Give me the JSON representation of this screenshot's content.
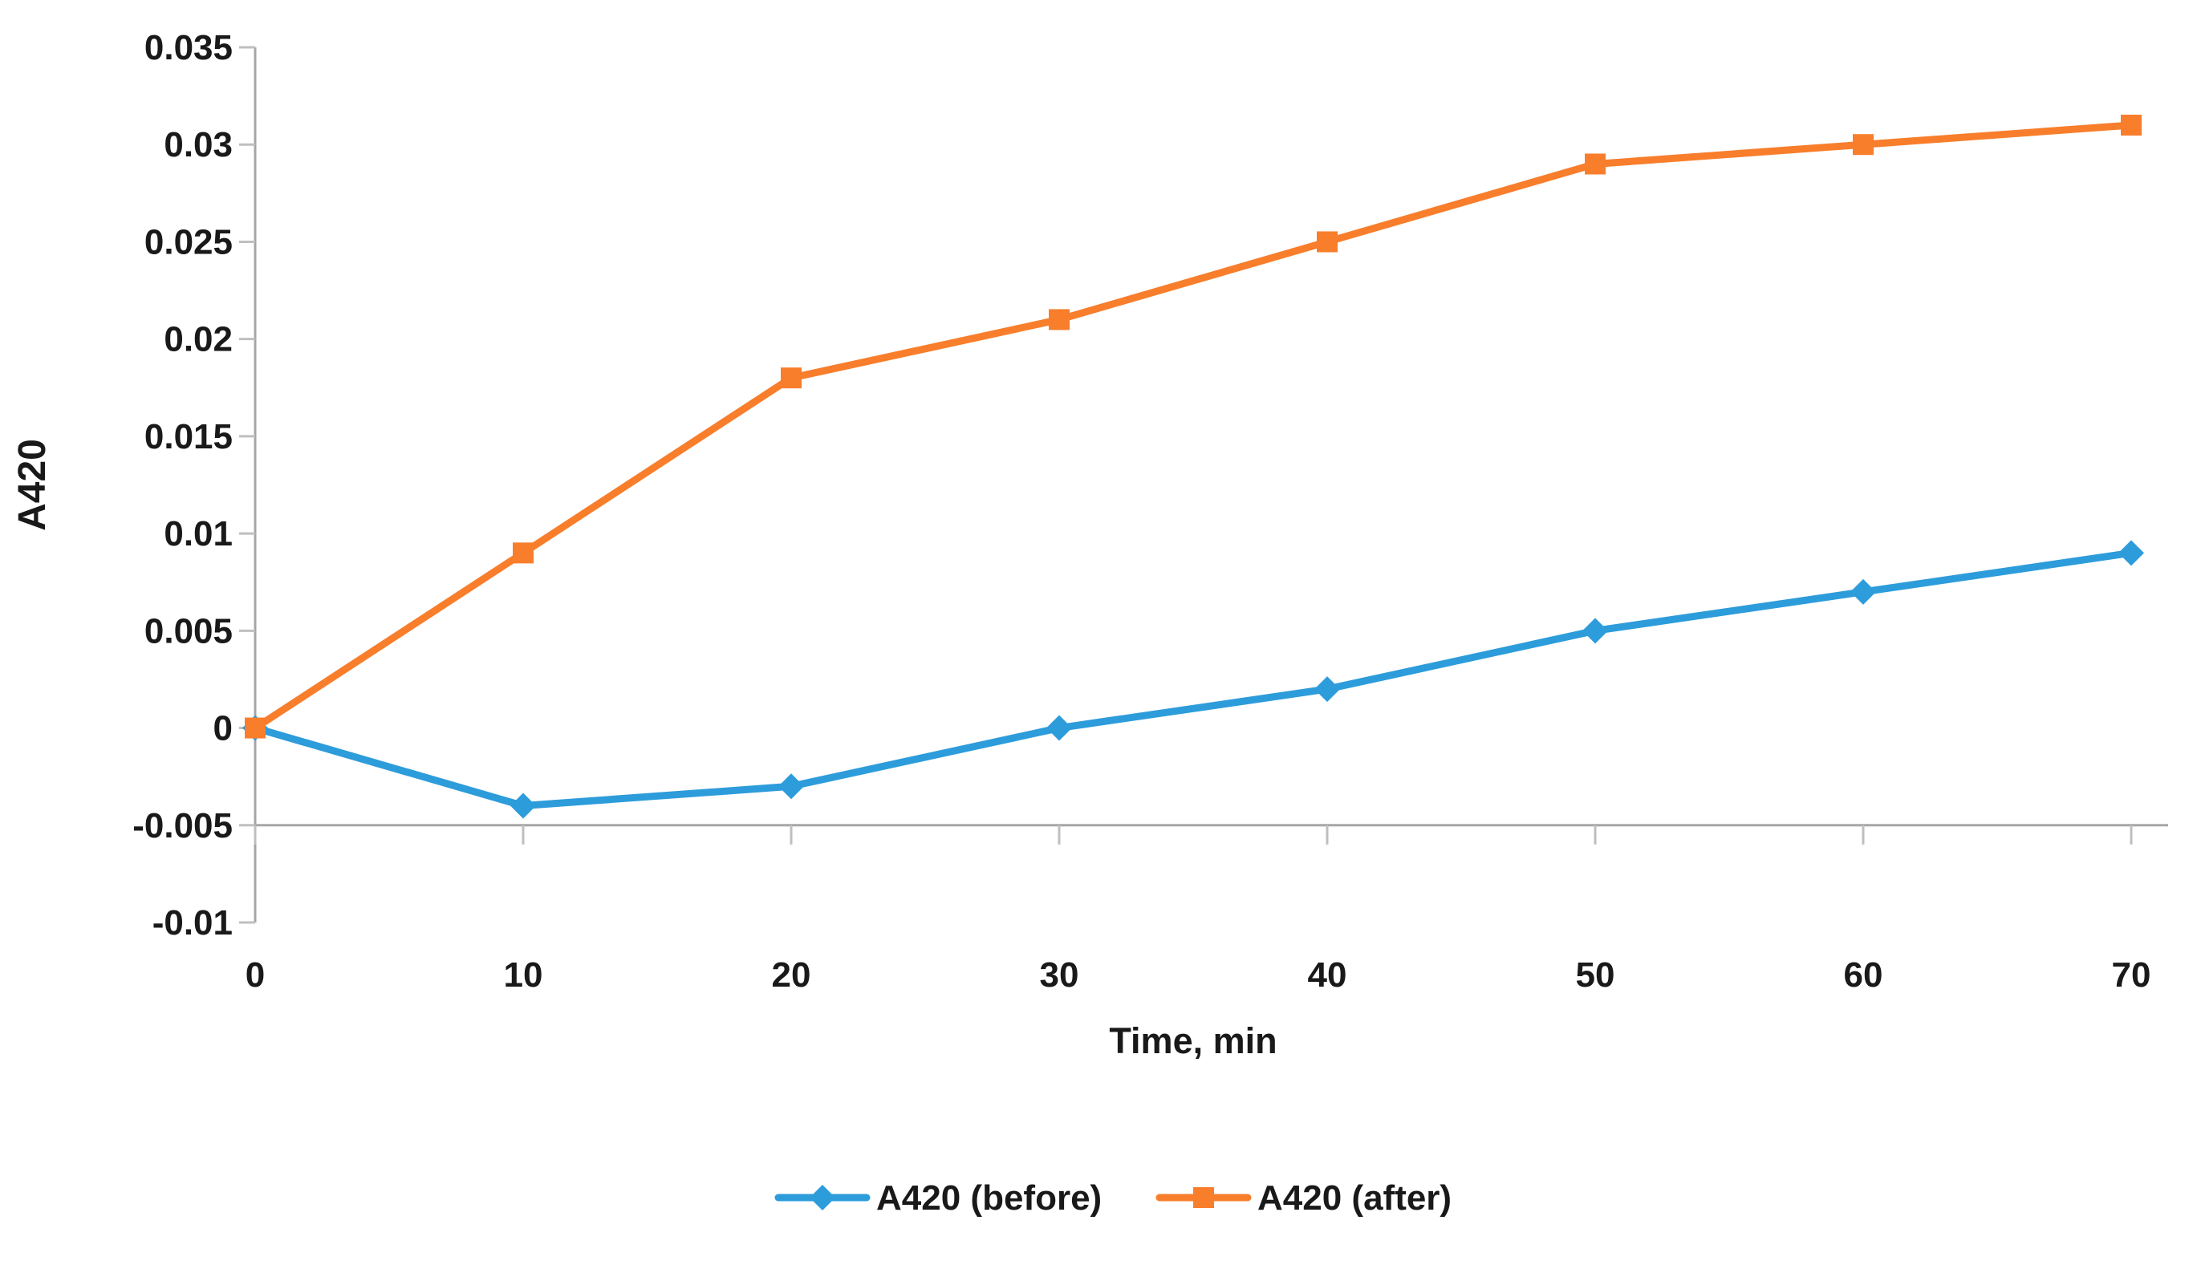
{
  "chart_data": {
    "type": "line",
    "x": [
      0,
      10,
      20,
      30,
      40,
      50,
      60,
      70
    ],
    "x_tick_labels": [
      "0",
      "10",
      "20",
      "30",
      "40",
      "50",
      "60",
      "70"
    ],
    "y_tick_labels": [
      "0.035",
      "0.03",
      "0.025",
      "0.02",
      "0.015",
      "0.01",
      "0.005",
      "0",
      "-0.005",
      "-0.01"
    ],
    "ylim": [
      -0.01,
      0.035
    ],
    "y_tick_step": 0.005,
    "x_axis_cross_y": -0.005,
    "grid": false,
    "legend_position": "bottom",
    "xlabel": "Time, min",
    "ylabel": "A420",
    "series": [
      {
        "name": "A420 (before)",
        "marker": "diamond",
        "color": "#2D9CDB",
        "values": [
          0,
          -0.004,
          -0.003,
          0,
          0.002,
          0.005,
          0.007,
          0.009
        ]
      },
      {
        "name": "A420 (after)",
        "marker": "square",
        "color": "#F87E2C",
        "values": [
          0,
          0.009,
          0.018,
          0.021,
          0.025,
          0.029,
          0.03,
          0.031
        ]
      }
    ],
    "colors": {
      "axis": "#A6A6A6",
      "tick": "#BFBFBF",
      "text": "#191919",
      "background": "#FFFFFF"
    }
  }
}
